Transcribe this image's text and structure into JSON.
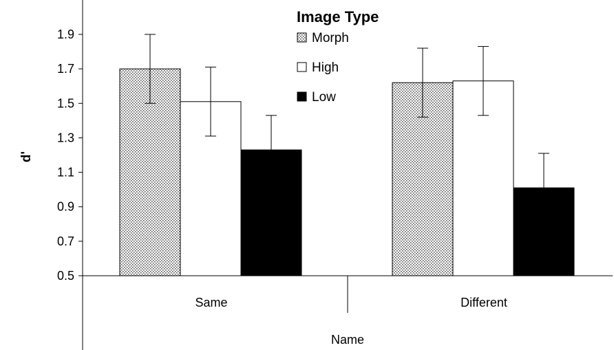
{
  "chart_data": {
    "type": "bar",
    "title": "",
    "xlabel": "Name",
    "ylabel": "d'",
    "ylim": [
      0.5,
      1.9
    ],
    "yticks": [
      "0.5",
      "0.7",
      "0.9",
      "1.1",
      "1.3",
      "1.5",
      "1.7",
      "1.9"
    ],
    "categories": [
      "Same",
      "Different"
    ],
    "legend_title": "Image Type",
    "legend_position": "top",
    "series": [
      {
        "name": "Morph",
        "values": [
          1.7,
          1.62
        ],
        "errors": [
          0.2,
          0.2
        ],
        "fill": "dotted"
      },
      {
        "name": "High",
        "values": [
          1.51,
          1.63
        ],
        "errors": [
          0.2,
          0.2
        ],
        "fill": "#ffffff"
      },
      {
        "name": "Low",
        "values": [
          1.23,
          1.01
        ],
        "errors": [
          0.2,
          0.2
        ],
        "fill": "#000000"
      }
    ],
    "grid": false
  }
}
